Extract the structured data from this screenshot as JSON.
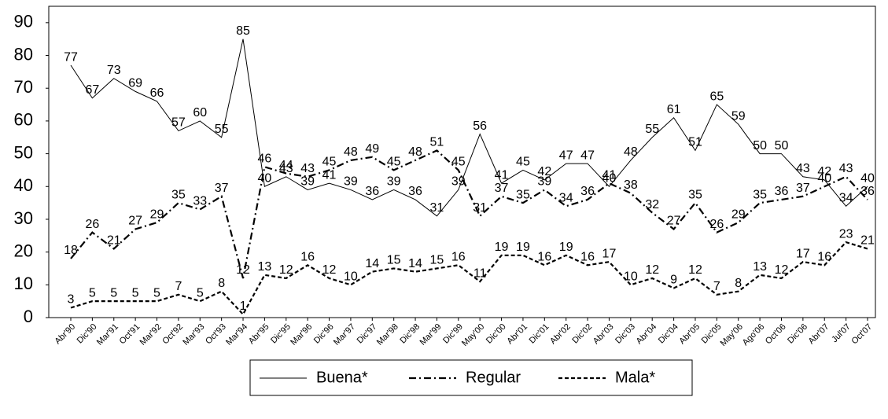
{
  "chart_data": {
    "type": "line",
    "categories": [
      "Abr'90",
      "Dic'90",
      "Mar'91",
      "Oct'91",
      "Mar'92",
      "Oct'92",
      "Mar'93",
      "Oct'93",
      "Mar'94",
      "Abr'95",
      "Dic'95",
      "Mar'96",
      "Dic'96",
      "Mar'97",
      "Dic'97",
      "Mar'98",
      "Dic'98",
      "Mar'99",
      "Dic'99",
      "May'00",
      "Dic'00",
      "Abr'01",
      "Dic'01",
      "Abr'02",
      "Dic'02",
      "Abr'03",
      "Dic'03",
      "Abr'04",
      "Dic'04",
      "Abr'05",
      "Dic'05",
      "May'06",
      "Ago'06",
      "Oct'06",
      "Dic'06",
      "Abr'07",
      "Jul'07",
      "Oct'07"
    ],
    "series": [
      {
        "name": "Buena*",
        "color": "#000000",
        "dash": "none",
        "values": [
          77,
          67,
          73,
          69,
          66,
          57,
          60,
          55,
          85,
          40,
          43,
          39,
          41,
          39,
          36,
          39,
          36,
          31,
          39,
          56,
          41,
          45,
          42,
          47,
          47,
          40,
          48,
          55,
          61,
          51,
          65,
          59,
          50,
          50,
          43,
          42,
          34,
          40
        ]
      },
      {
        "name": "Regular",
        "color": "#000000",
        "dash": "9 4 2 4",
        "values": [
          18,
          26,
          21,
          27,
          29,
          35,
          33,
          37,
          12,
          46,
          44,
          43,
          45,
          48,
          49,
          45,
          48,
          51,
          45,
          31,
          37,
          35,
          39,
          34,
          36,
          41,
          38,
          32,
          27,
          35,
          26,
          29,
          35,
          36,
          37,
          40,
          43,
          36
        ]
      },
      {
        "name": "Mala*",
        "color": "#000000",
        "dash": "5 3",
        "values": [
          3,
          5,
          5,
          5,
          5,
          7,
          5,
          8,
          1,
          13,
          12,
          16,
          12,
          10,
          14,
          15,
          14,
          15,
          16,
          11,
          19,
          19,
          16,
          19,
          16,
          17,
          10,
          12,
          9,
          12,
          7,
          8,
          13,
          12,
          17,
          16,
          23,
          21
        ]
      }
    ],
    "ylim": [
      0,
      95
    ],
    "yticks": [
      0,
      10,
      20,
      30,
      40,
      50,
      60,
      70,
      80,
      90
    ],
    "grid": false,
    "legend": "bottom"
  }
}
